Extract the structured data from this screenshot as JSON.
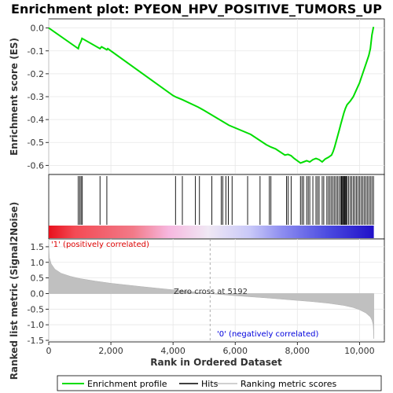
{
  "chart_data": {
    "type": "line",
    "title": "Enrichment plot: PYEON_HPV_POSITIVE_TUMORS_UP",
    "ylabel_top": "Enrichment score (ES)",
    "ylabel_bottom": "Ranked list metric (Signal2Noise)",
    "xlabel": "Rank in Ordered Dataset",
    "xlim": [
      0,
      10800
    ],
    "x_ticks": [
      0,
      2000,
      4000,
      6000,
      8000,
      10000
    ],
    "x_tick_labels": [
      "0",
      "2,000",
      "4,000",
      "6,000",
      "8,000",
      "10,000"
    ],
    "es_ylim": [
      -0.64,
      0.04
    ],
    "es_ticks": [
      0.0,
      -0.1,
      -0.2,
      -0.3,
      -0.4,
      -0.5,
      -0.6
    ],
    "es_tick_labels": [
      "0.0",
      "-0.1",
      "-0.2",
      "-0.3",
      "-0.4",
      "-0.5",
      "-0.6"
    ],
    "metric_ylim": [
      -1.55,
      1.75
    ],
    "metric_ticks": [
      1.5,
      1.0,
      0.5,
      0.0,
      -0.5,
      -1.0,
      -1.5
    ],
    "metric_tick_labels": [
      "1.5",
      "1.0",
      "0.5",
      "0.0",
      "-0.5",
      "-1.0",
      "-1.5"
    ],
    "series": [
      {
        "name": "Enrichment profile",
        "color": "#00dd00",
        "x": [
          0,
          950,
          980,
          1040,
          1070,
          1650,
          1700,
          1870,
          1900,
          4000,
          4100,
          4300,
          4800,
          5000,
          5800,
          6500,
          7000,
          7150,
          7300,
          7600,
          7700,
          7800,
          7900,
          8100,
          8200,
          8300,
          8400,
          8500,
          8600,
          8700,
          8800,
          8900,
          9000,
          9100,
          9150,
          9200,
          9250,
          9300,
          9350,
          9400,
          9450,
          9500,
          9550,
          9600,
          9700,
          9800,
          9900,
          10000,
          10100,
          10200,
          10300,
          10350,
          10400,
          10450
        ],
        "y": [
          0.0,
          -0.09,
          -0.075,
          -0.058,
          -0.045,
          -0.09,
          -0.082,
          -0.095,
          -0.09,
          -0.295,
          -0.302,
          -0.313,
          -0.345,
          -0.36,
          -0.425,
          -0.465,
          -0.51,
          -0.52,
          -0.528,
          -0.555,
          -0.552,
          -0.558,
          -0.57,
          -0.59,
          -0.585,
          -0.58,
          -0.585,
          -0.575,
          -0.57,
          -0.575,
          -0.585,
          -0.572,
          -0.565,
          -0.555,
          -0.54,
          -0.52,
          -0.495,
          -0.47,
          -0.445,
          -0.42,
          -0.395,
          -0.37,
          -0.35,
          -0.335,
          -0.32,
          -0.3,
          -0.27,
          -0.24,
          -0.2,
          -0.16,
          -0.12,
          -0.09,
          -0.03,
          0.005
        ]
      }
    ],
    "hits": [
      950,
      1000,
      1040,
      1080,
      1650,
      1870,
      4080,
      4300,
      4720,
      4850,
      5250,
      5550,
      5600,
      5700,
      5780,
      5900,
      6400,
      6800,
      7100,
      7150,
      7650,
      7700,
      7800,
      8100,
      8150,
      8200,
      8300,
      8350,
      8400,
      8500,
      8600,
      8650,
      8700,
      8800,
      8850,
      8950,
      9000,
      9050,
      9100,
      9150,
      9200,
      9250,
      9300,
      9350,
      9400,
      9420,
      9450,
      9480,
      9500,
      9520,
      9550,
      9580,
      9600,
      9650,
      9700,
      9750,
      9800,
      9850,
      9900,
      9950,
      10000,
      10050,
      10100,
      10150,
      10200,
      10250,
      10300,
      10350,
      10400,
      10450
    ],
    "metric_curve": {
      "x": [
        0,
        20,
        80,
        200,
        400,
        700,
        1000,
        1500,
        2000,
        3000,
        4000,
        5192,
        6000,
        7000,
        8000,
        8500,
        9000,
        9500,
        9800,
        10000,
        10200,
        10350,
        10400,
        10440,
        10460
      ],
      "y": [
        1.6,
        1.15,
        0.95,
        0.78,
        0.65,
        0.55,
        0.48,
        0.4,
        0.33,
        0.22,
        0.12,
        0.0,
        -0.07,
        -0.14,
        -0.22,
        -0.26,
        -0.31,
        -0.38,
        -0.45,
        -0.52,
        -0.62,
        -0.75,
        -0.85,
        -1.0,
        -1.45
      ]
    },
    "zero_cross_x": 5192,
    "annotations": {
      "positive": "'1' (positively correlated)",
      "zero_cross": "Zero cross at 5192",
      "negative": "'0' (negatively correlated)"
    },
    "legend": [
      "Enrichment profile",
      "Hits",
      "Ranking metric scores"
    ],
    "legend_placement": "bottom",
    "grid": true,
    "colors": {
      "profile": "#00dd00",
      "hits": "#000000",
      "metric_fill": "#c0c0c0",
      "positive_text": "#dd0000",
      "negative_text": "#0000dd"
    }
  }
}
